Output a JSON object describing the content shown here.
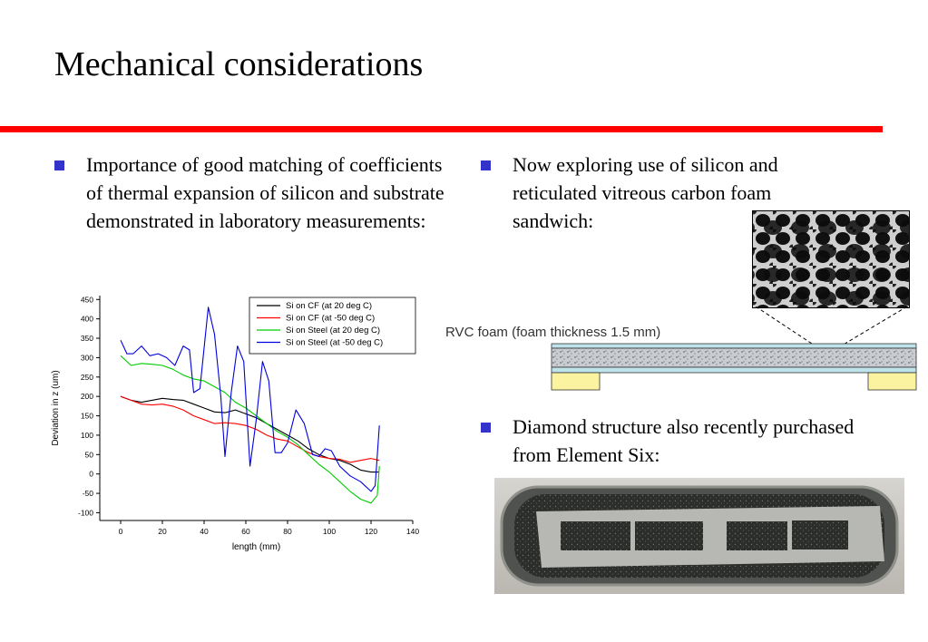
{
  "slide": {
    "title": "Mechanical considerations",
    "accent_color": "#ff0000",
    "bullet_color": "#3333cc"
  },
  "bullets": {
    "b1": "Importance of good matching of coefficients of thermal expansion of silicon and substrate demonstrated in laboratory measurements:",
    "b2": "Now exploring use of silicon and reticulated vitreous carbon foam sandwich:",
    "b3": "Diamond structure also recently purchased from Element Six:"
  },
  "rvc": {
    "label": "RVC foam (foam thickness 1.5 mm)"
  },
  "images": {
    "foam": "rvc-foam-micrograph",
    "diamond": "diamond-structure-photo"
  },
  "chart_data": {
    "type": "line",
    "title": "",
    "xlabel": "length (mm)",
    "ylabel": "Deviation in z (um)",
    "xlim": [
      -10,
      140
    ],
    "ylim": [
      -120,
      460
    ],
    "xticks": [
      0,
      20,
      40,
      60,
      80,
      100,
      120,
      140
    ],
    "yticks": [
      450,
      400,
      350,
      300,
      250,
      200,
      150,
      100,
      50,
      0,
      -50,
      -100
    ],
    "grid": false,
    "legend_position": "top-right",
    "series": [
      {
        "name": "Si on CF (at 20 deg C)",
        "color": "#000000",
        "x": [
          0,
          5,
          10,
          15,
          20,
          25,
          30,
          35,
          40,
          45,
          50,
          55,
          60,
          65,
          70,
          75,
          80,
          85,
          90,
          95,
          100,
          105,
          110,
          115,
          120,
          124
        ],
        "y": [
          200,
          190,
          185,
          190,
          195,
          192,
          190,
          180,
          170,
          160,
          158,
          165,
          155,
          145,
          130,
          115,
          100,
          85,
          65,
          50,
          40,
          35,
          25,
          10,
          5,
          5
        ]
      },
      {
        "name": "Si on CF (at -50 deg C)",
        "color": "#ff0000",
        "x": [
          0,
          5,
          10,
          15,
          20,
          25,
          30,
          35,
          40,
          45,
          50,
          55,
          60,
          65,
          70,
          75,
          80,
          85,
          90,
          95,
          100,
          105,
          110,
          115,
          120,
          124
        ],
        "y": [
          200,
          190,
          180,
          178,
          180,
          175,
          165,
          150,
          140,
          130,
          132,
          130,
          125,
          115,
          100,
          90,
          85,
          70,
          55,
          45,
          40,
          38,
          30,
          35,
          40,
          35
        ]
      },
      {
        "name": "Si on Steel (at 20 deg C)",
        "color": "#00cc00",
        "x": [
          0,
          5,
          10,
          15,
          20,
          25,
          30,
          35,
          40,
          45,
          50,
          55,
          60,
          65,
          70,
          75,
          80,
          85,
          90,
          95,
          100,
          105,
          110,
          115,
          120,
          123,
          124
        ],
        "y": [
          305,
          280,
          285,
          283,
          280,
          270,
          255,
          245,
          240,
          225,
          210,
          185,
          170,
          150,
          130,
          110,
          95,
          75,
          50,
          25,
          5,
          -20,
          -45,
          -65,
          -75,
          -55,
          20
        ]
      },
      {
        "name": "Si on Steel (at -50 deg C)",
        "color": "#0000dd",
        "x": [
          0,
          3,
          6,
          10,
          14,
          18,
          22,
          26,
          30,
          33,
          35,
          38,
          42,
          45,
          48,
          50,
          53,
          56,
          59,
          62,
          65,
          68,
          71,
          74,
          77,
          80,
          84,
          88,
          92,
          95,
          98,
          101,
          105,
          110,
          115,
          120,
          122,
          124
        ],
        "y": [
          345,
          310,
          310,
          330,
          305,
          310,
          300,
          280,
          330,
          320,
          210,
          220,
          430,
          360,
          200,
          45,
          210,
          330,
          290,
          20,
          140,
          290,
          240,
          55,
          55,
          80,
          165,
          130,
          50,
          45,
          65,
          60,
          20,
          -5,
          -20,
          -45,
          -30,
          125
        ]
      }
    ]
  }
}
